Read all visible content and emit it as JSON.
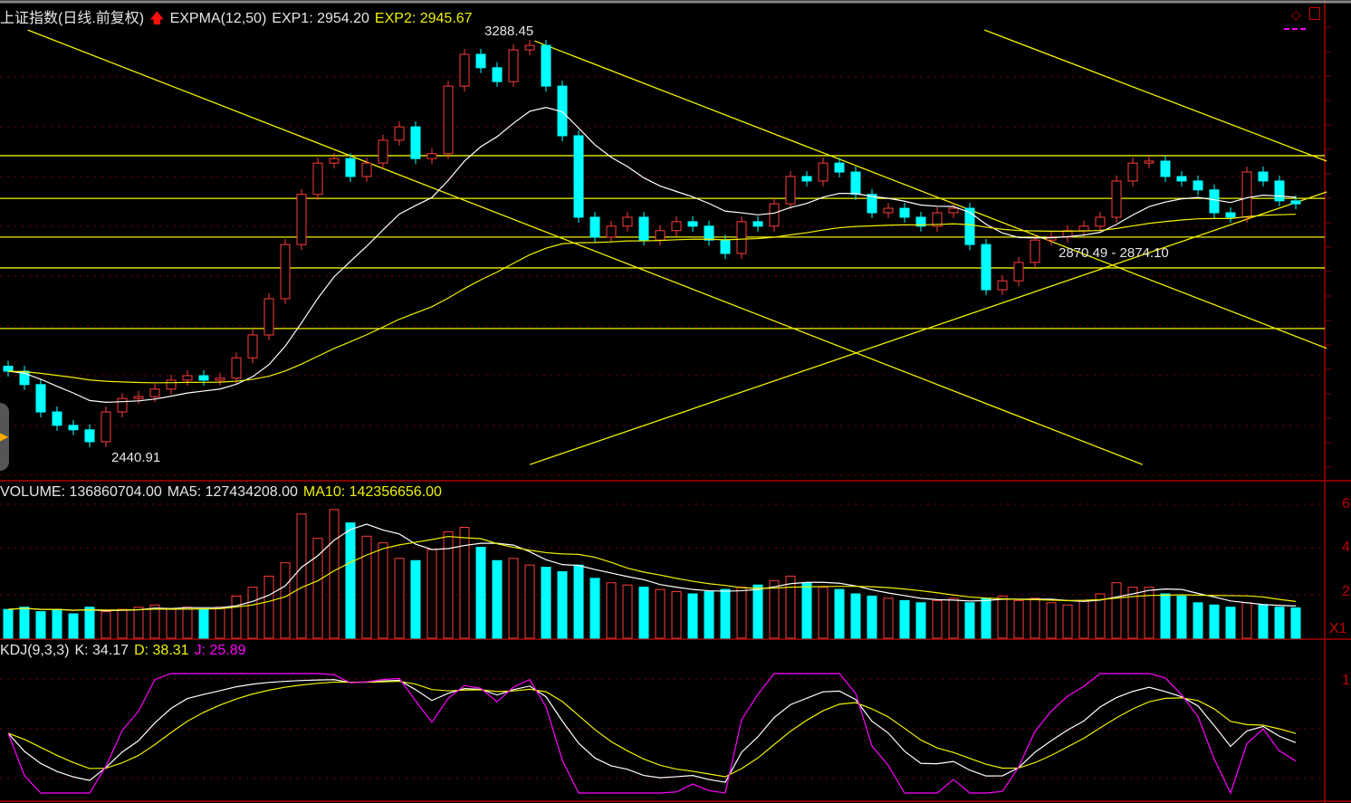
{
  "main": {
    "title": "上证指数(日线.前复权)",
    "indicator": "EXPMA(12,50)",
    "exp1": "EXP1: 2954.20",
    "exp2": "EXP2: 2945.67",
    "annotations": {
      "high": "3288.45",
      "low": "2440.91",
      "range": "2870.49 - 2874.10"
    }
  },
  "volume": {
    "label": "VOLUME: 136860704.00",
    "ma5": "MA5: 127434208.00",
    "ma10": "MA10: 142356656.00",
    "axis_ticks": [
      "6",
      "4",
      "2"
    ],
    "multiplier": "X1"
  },
  "kdj": {
    "label": "KDJ(9,3,3)",
    "k": "K: 34.17",
    "d": "D: 38.31",
    "j": "J: 25.89",
    "axis_ticks": [
      "1"
    ]
  },
  "colors": {
    "up": "#ff3c3c",
    "down": "#00ffff",
    "exp1": "#ffffff",
    "exp2": "#f0f000",
    "j": "#ff00ff",
    "grid": "#800000",
    "trendline": "#f0f000"
  },
  "chart_data": {
    "type": "candlestick",
    "price_range": [
      2440.91,
      3288.45
    ],
    "closes": [
      2614,
      2587,
      2532,
      2505,
      2496,
      2472,
      2532,
      2559,
      2563,
      2578,
      2596,
      2605,
      2596,
      2600,
      2641,
      2687,
      2760,
      2869,
      2970,
      3033,
      3042,
      3006,
      3033,
      3079,
      3106,
      3042,
      3052,
      3188,
      3252,
      3225,
      3197,
      3261,
      3270,
      3188,
      3088,
      2924,
      2884,
      2906,
      2924,
      2878,
      2897,
      2915,
      2906,
      2878,
      2851,
      2915,
      2906,
      2951,
      3006,
      2997,
      3033,
      3015,
      2970,
      2933,
      2942,
      2924,
      2906,
      2933,
      2942,
      2869,
      2778,
      2796,
      2833,
      2878,
      2884,
      2897,
      2906,
      2924,
      2997,
      3033,
      3037,
      3006,
      2997,
      2979,
      2933,
      2924,
      3015,
      2997,
      2957,
      2951
    ],
    "volume_1e8": [
      1.3,
      1.4,
      1.2,
      1.3,
      1.1,
      1.4,
      1.2,
      1.3,
      1.4,
      1.5,
      1.3,
      1.4,
      1.3,
      1.4,
      1.9,
      2.3,
      2.8,
      3.4,
      5.6,
      4.5,
      5.8,
      5.2,
      4.6,
      4.3,
      3.6,
      3.5,
      4.0,
      4.8,
      5.0,
      4.1,
      3.5,
      3.6,
      3.3,
      3.2,
      3.0,
      3.3,
      2.7,
      2.5,
      2.4,
      2.3,
      2.2,
      2.1,
      2.0,
      2.1,
      2.2,
      2.3,
      2.4,
      2.6,
      2.8,
      2.5,
      2.3,
      2.2,
      2.0,
      1.9,
      1.8,
      1.7,
      1.6,
      1.7,
      1.8,
      1.6,
      1.8,
      1.9,
      1.7,
      1.8,
      1.6,
      1.5,
      1.7,
      2.0,
      2.5,
      2.3,
      2.3,
      2.0,
      1.9,
      1.6,
      1.5,
      1.4,
      1.6,
      1.5,
      1.4,
      1.37
    ],
    "horizontal_lines": [
      3048,
      2962,
      2884,
      2822,
      2700
    ],
    "trend_lines": [
      {
        "from": [
          1.2,
          3301
        ],
        "to": [
          69.6,
          2426
        ]
      },
      {
        "from": [
          32,
          2426
        ],
        "to": [
          80.9,
          2975
        ]
      },
      {
        "from": [
          32.3,
          3279
        ],
        "to": [
          80.9,
          2660
        ]
      },
      {
        "from": [
          59.9,
          3301
        ],
        "to": [
          80.9,
          3037
        ]
      }
    ]
  }
}
